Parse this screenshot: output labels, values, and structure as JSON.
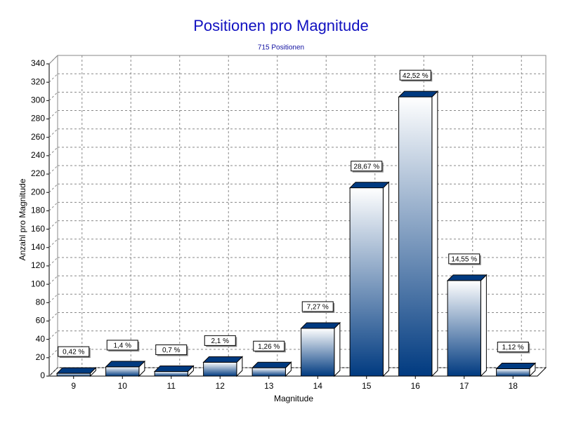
{
  "chart_data": {
    "type": "bar",
    "title": "Positionen pro Magnitude",
    "subtitle": "715 Positionen",
    "x_label": "Magnitude",
    "y_label": "Anzahl pro Magnitude",
    "categories": [
      "9",
      "10",
      "11",
      "12",
      "13",
      "14",
      "15",
      "16",
      "17",
      "18"
    ],
    "values": [
      3,
      10,
      5,
      15,
      9,
      52,
      205,
      304,
      104,
      8
    ],
    "value_labels": [
      "0,42 %",
      "1,4 %",
      "0,7 %",
      "2,1 %",
      "1,26 %",
      "7,27 %",
      "28,67 %",
      "42,52 %",
      "14,55 %",
      "1,12 %"
    ],
    "color": "#003a80",
    "ylim": [
      0,
      340
    ],
    "yticks": [
      0,
      20,
      40,
      60,
      80,
      100,
      120,
      140,
      160,
      180,
      200,
      220,
      240,
      260,
      280,
      300,
      320,
      340
    ],
    "grid": true
  }
}
